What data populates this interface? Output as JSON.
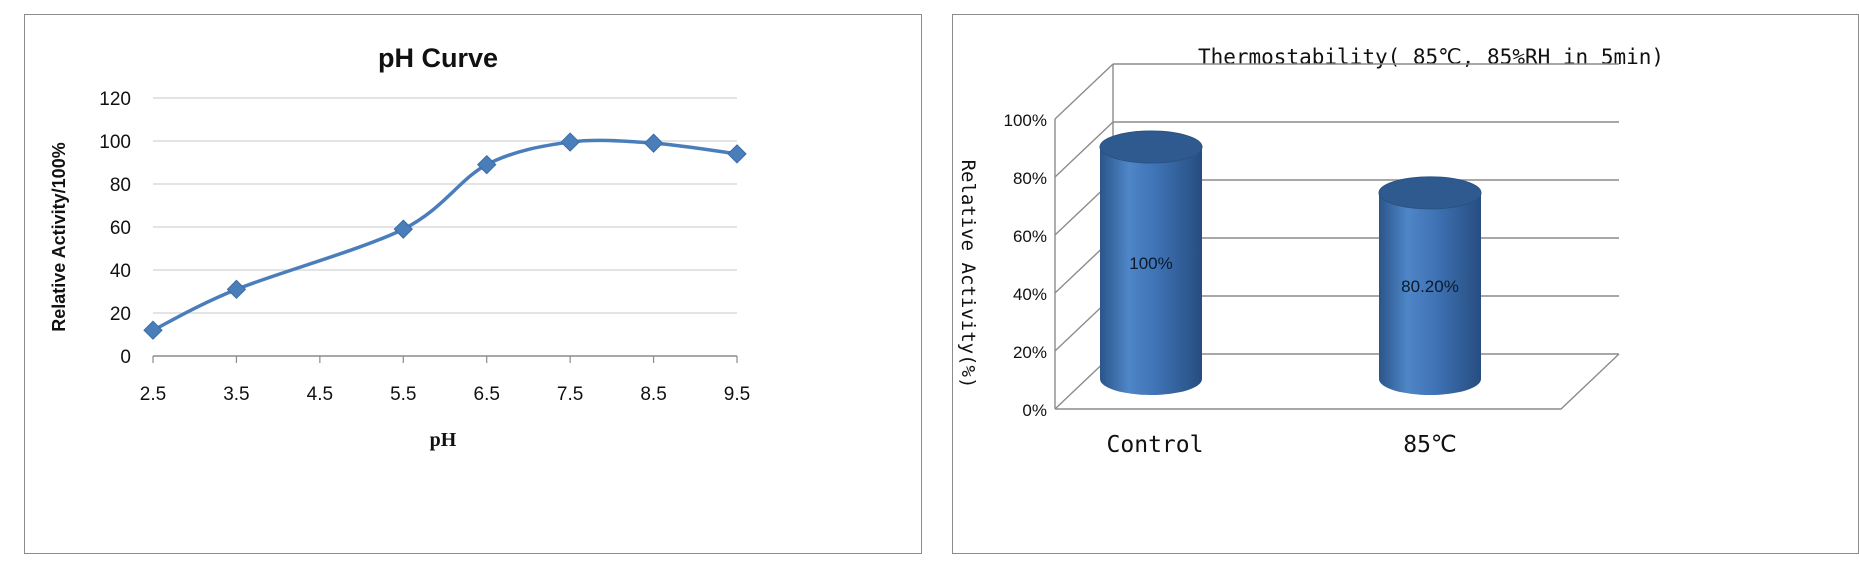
{
  "chart_data": [
    {
      "type": "line",
      "title": "pH Curve",
      "xlabel": "pH",
      "ylabel": "Relative Activity/100%",
      "x": [
        2.5,
        3.5,
        4.5,
        5.5,
        6.5,
        7.5,
        8.5,
        9.5
      ],
      "x_ticks": [
        "2.5",
        "3.5",
        "4.5",
        "5.5",
        "6.5",
        "7.5",
        "8.5",
        "9.5"
      ],
      "y_ticks": [
        "0",
        "20",
        "40",
        "60",
        "80",
        "100",
        "120"
      ],
      "ylim": [
        0,
        120
      ],
      "grid": true,
      "legend": "none",
      "series": [
        {
          "points": [
            [
              2.5,
              12
            ],
            [
              3.5,
              31
            ],
            [
              5.5,
              59
            ],
            [
              6.5,
              89
            ],
            [
              7.5,
              99.5
            ],
            [
              8.5,
              99
            ],
            [
              9.5,
              94
            ]
          ],
          "color": "#4a7ebb",
          "marker": "diamond"
        }
      ]
    },
    {
      "type": "bar",
      "style": "3d-cylinder",
      "title": "Thermostability( 85℃, 85%RH in 5min)",
      "xlabel": "",
      "ylabel": "Relative Activity(%)",
      "categories": [
        "Control",
        "85℃"
      ],
      "values": [
        100,
        80.2
      ],
      "data_labels": [
        "100%",
        "80.20%"
      ],
      "y_ticks": [
        "0%",
        "20%",
        "40%",
        "60%",
        "80%",
        "100%"
      ],
      "ylim": [
        0,
        100
      ],
      "grid": true,
      "legend": "none",
      "color": "#3f72b4"
    }
  ]
}
